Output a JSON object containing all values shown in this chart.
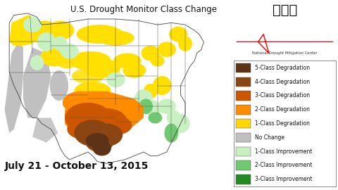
{
  "title": "U.S. Drought Monitor Class Change",
  "date_text": "July 21 - October 13, 2015",
  "title_fontsize": 8.5,
  "date_fontsize": 10,
  "legend_fontsize": 5.5,
  "legend_items": [
    {
      "label": "5-Class Degradation",
      "color": "#5C3317"
    },
    {
      "label": "4-Class Degradation",
      "color": "#8B4513"
    },
    {
      "label": "3-Class Degradation",
      "color": "#CC5500"
    },
    {
      "label": "2-Class Degradation",
      "color": "#FF8C00"
    },
    {
      "label": "1-Class Degradation",
      "color": "#FFD700"
    },
    {
      "label": "No Change",
      "color": "#C0C0C0"
    },
    {
      "label": "1-Class Improvement",
      "color": "#C8F0C0"
    },
    {
      "label": "2-Class Improvement",
      "color": "#70C870"
    },
    {
      "label": "3-Class Improvement",
      "color": "#228B22"
    }
  ],
  "bg_color": "#FFFFFF",
  "map_bg": "#FFFFFF",
  "ocean_color": "#FFFFFF",
  "border_color": "#555555"
}
